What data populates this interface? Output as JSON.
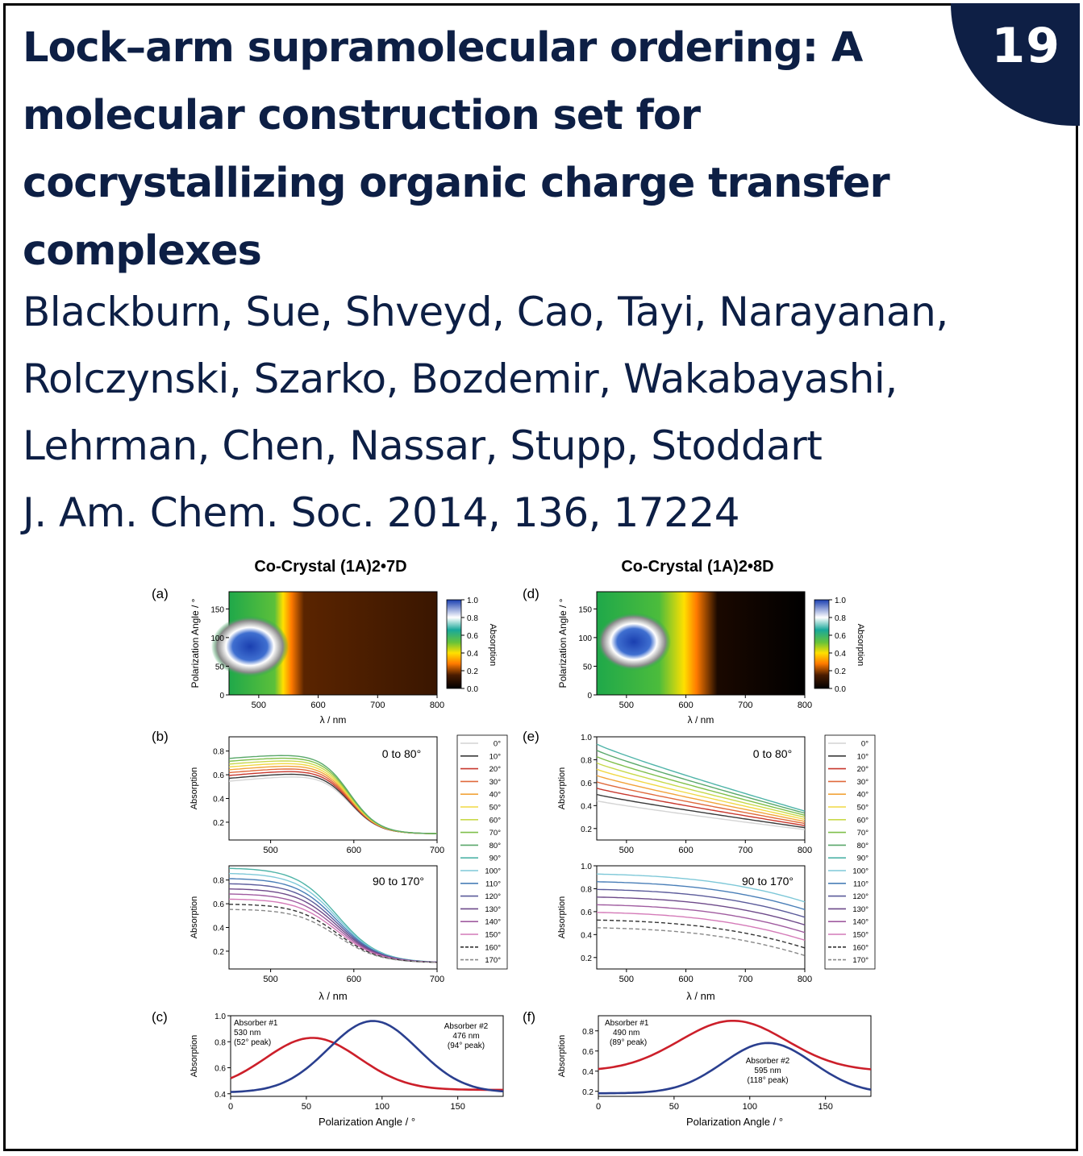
{
  "badge": {
    "number": "19"
  },
  "title": "Lock–arm supramolecular ordering: A molecular construction set for cocrystallizing organic charge transfer complexes",
  "authors_line1": "Blackburn, Sue, Shveyd, Cao, Tayi, Narayanan,",
  "authors_line2": "Rolczynski, Szarko, Bozdemir, Wakabayashi,",
  "authors_line3": "Lehrman, Chen, Nassar, Stupp, Stoddart",
  "citation": "J. Am. Chem. Soc. 2014, 136, 17224",
  "figure": {
    "col1_title": "Co-Crystal (1A)2•7D",
    "col2_title": "Co-Crystal (1A)2•8D",
    "panel_labels": [
      "(a)",
      "(b)",
      "(c)",
      "(d)",
      "(e)",
      "(f)"
    ],
    "heatmap_ylabel": "Polarization Angle / °",
    "heatmap_xlabel": "λ / nm",
    "colorbar_label": "Absorption",
    "colorbar_ticks": [
      "1.0",
      "0.8",
      "0.6",
      "0.4",
      "0.2",
      "0.0"
    ],
    "absorption_label": "Absorption",
    "range_0_80": "0 to 80°",
    "range_90_170": "90 to 170°",
    "lambda_label": "λ / nm",
    "polarization_xlabel": "Polarization Angle / °",
    "legend_angles": [
      "0°",
      "10°",
      "20°",
      "30°",
      "40°",
      "50°",
      "60°",
      "70°",
      "80°",
      "90°",
      "100°",
      "110°",
      "120°",
      "130°",
      "140°",
      "150°",
      "160°",
      "170°"
    ],
    "legend_colors": [
      "#d4d4d4",
      "#3a3a3a",
      "#c8382e",
      "#e06a3c",
      "#f2a33a",
      "#f1d843",
      "#c9d94a",
      "#7fbf4a",
      "#5aa86a",
      "#4fb4a8",
      "#7ec8d8",
      "#4a7fb8",
      "#5a5a9a",
      "#6e4a8a",
      "#a05ca0",
      "#d47ab8",
      "#333333",
      "#888888"
    ],
    "panel_c": {
      "abs1": [
        "Absorber #1",
        "530 nm",
        "(52° peak)"
      ],
      "abs2": [
        "Absorber #2",
        "476 nm",
        "(94° peak)"
      ]
    },
    "panel_f": {
      "abs1": [
        "Absorber #1",
        "490 nm",
        "(89° peak)"
      ],
      "abs2": [
        "Absorber #2",
        "595 nm",
        "(118° peak)"
      ]
    }
  }
}
